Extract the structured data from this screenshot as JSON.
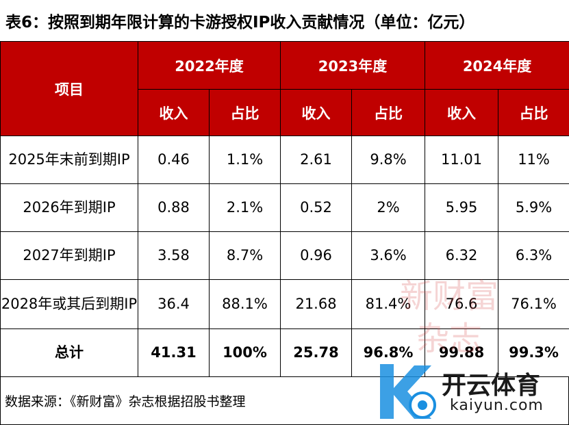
{
  "title": "表6：按照到期年限计算的卡游授权IP收入贡献情况（单位：亿元）",
  "header": {
    "item_label": "项目",
    "years": [
      "2022年度",
      "2023年度",
      "2024年度"
    ],
    "income_label": "收入",
    "share_label": "占比"
  },
  "rows": [
    {
      "label": "2025年末前到期IP",
      "cells": [
        "0.46",
        "1.1%",
        "2.61",
        "9.8%",
        "11.01",
        "11%"
      ]
    },
    {
      "label": "2026年到期IP",
      "cells": [
        "0.88",
        "2.1%",
        "0.52",
        "2%",
        "5.95",
        "5.9%"
      ]
    },
    {
      "label": "2027年到期IP",
      "cells": [
        "3.58",
        "8.7%",
        "0.96",
        "3.6%",
        "6.32",
        "6.3%"
      ]
    },
    {
      "label": "2028年或其后到期IP",
      "cells": [
        "36.4",
        "88.1%",
        "21.68",
        "81.4%",
        "76.6",
        "76.1%"
      ]
    }
  ],
  "total": {
    "label": "总计",
    "cells": [
      "41.31",
      "100%",
      "25.78",
      "96.8%",
      "99.88",
      "99.3%"
    ]
  },
  "footer": "数据来源：《新财富》杂志根据招股书整理",
  "watermark": {
    "line1": "新财富",
    "line2": "杂志"
  },
  "logo": {
    "brand": "开云体育",
    "domain": "kaiyun.com"
  },
  "colors": {
    "header_bg": "#c00000",
    "header_text": "#ffffff"
  }
}
